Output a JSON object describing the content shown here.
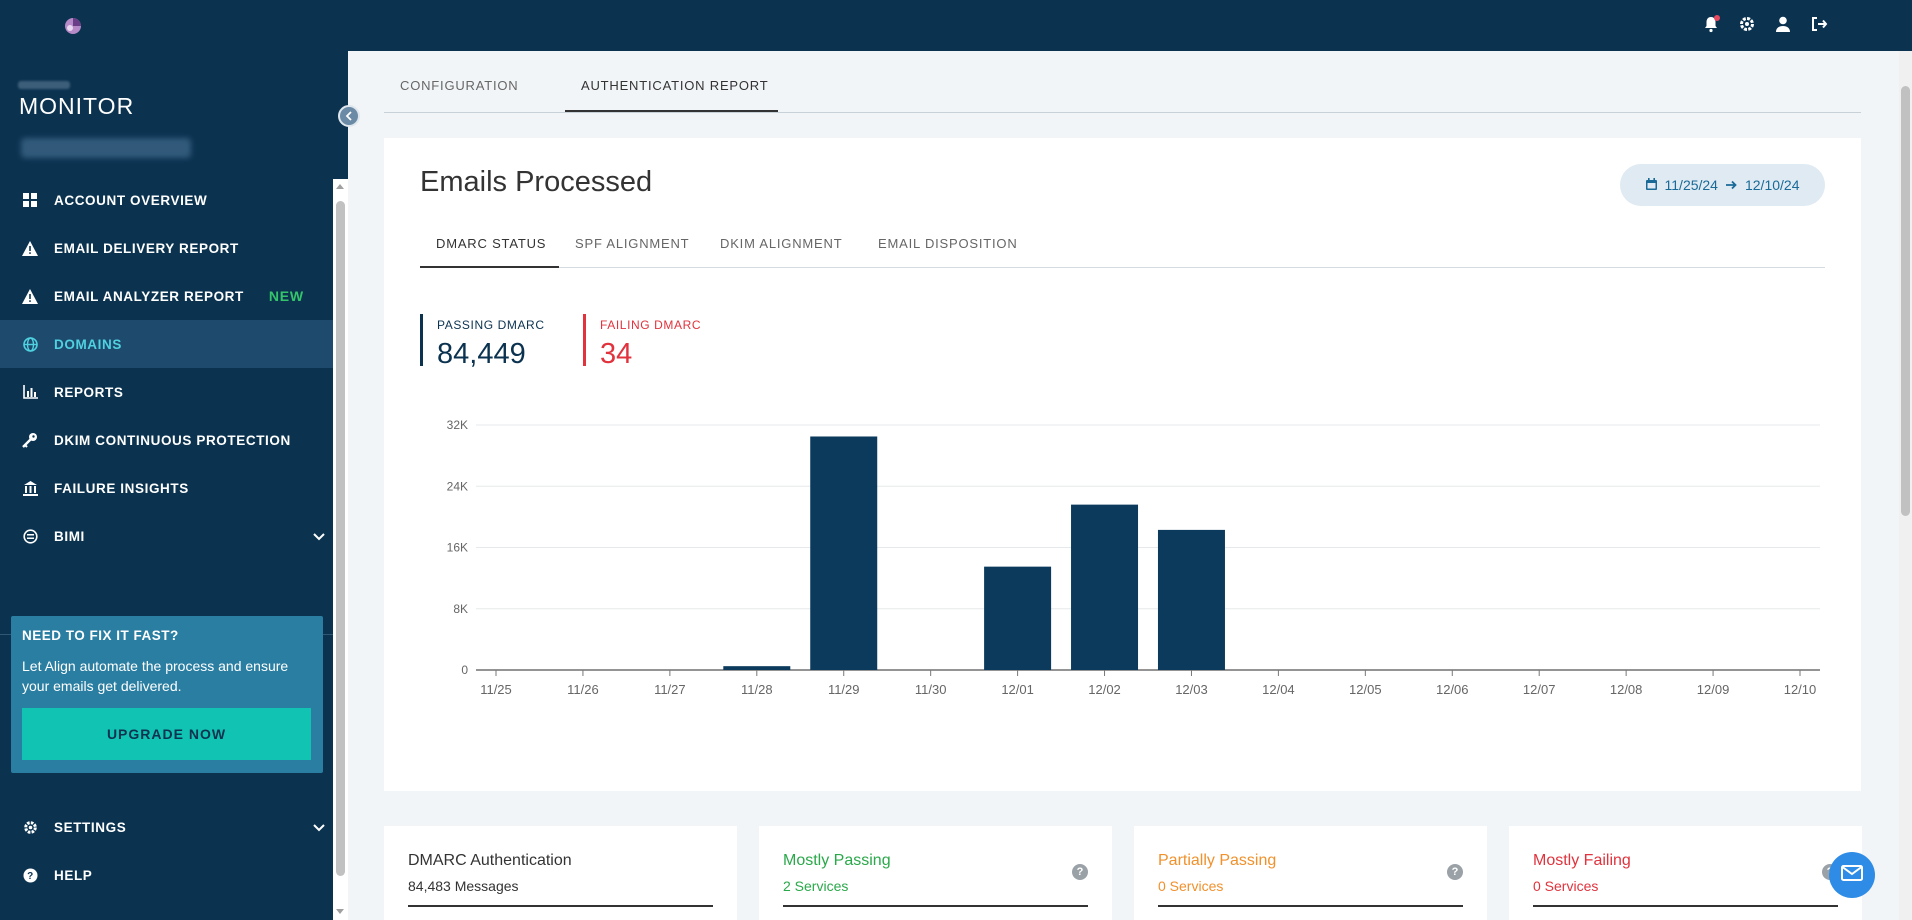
{
  "header": {
    "icons": [
      "app-logo-icon",
      "notification-bell-icon",
      "settings-gear-icon",
      "user-icon",
      "logout-icon"
    ]
  },
  "sidebar": {
    "brand": "MONITOR",
    "items": [
      {
        "label": "ACCOUNT OVERVIEW",
        "icon": "dashboard-grid-icon"
      },
      {
        "label": "EMAIL DELIVERY REPORT",
        "icon": "warning-triangle-icon"
      },
      {
        "label": "EMAIL ANALYZER REPORT",
        "icon": "warning-triangle-icon",
        "badge": "NEW"
      },
      {
        "label": "DOMAINS",
        "icon": "globe-icon",
        "active": true
      },
      {
        "label": "REPORTS",
        "icon": "bar-chart-icon"
      },
      {
        "label": "DKIM CONTINUOUS PROTECTION",
        "icon": "key-icon"
      },
      {
        "label": "FAILURE INSIGHTS",
        "icon": "building-icon"
      },
      {
        "label": "BIMI",
        "icon": "bimi-icon"
      }
    ],
    "promo": {
      "title": "NEED TO FIX IT FAST?",
      "text": "Let Align automate the process and ensure your emails get delivered.",
      "button": "UPGRADE NOW"
    },
    "bottom_items": [
      {
        "label": "SETTINGS",
        "icon": "gear-icon"
      },
      {
        "label": "HELP",
        "icon": "help-circle-icon"
      }
    ]
  },
  "tabs": {
    "configuration": "CONFIGURATION",
    "authentication_report": "AUTHENTICATION REPORT"
  },
  "report": {
    "title": "Emails Processed",
    "date_from": "11/25/24",
    "date_to": "12/10/24",
    "sub_tabs": [
      "DMARC STATUS",
      "SPF ALIGNMENT",
      "DKIM ALIGNMENT",
      "EMAIL DISPOSITION"
    ],
    "passing_label": "PASSING DMARC",
    "passing_value": "84,449",
    "failing_label": "FAILING DMARC",
    "failing_value": "34"
  },
  "chart_data": {
    "type": "bar",
    "categories": [
      "11/25",
      "11/26",
      "11/27",
      "11/28",
      "11/29",
      "11/30",
      "12/01",
      "12/02",
      "12/03",
      "12/04",
      "12/05",
      "12/06",
      "12/07",
      "12/08",
      "12/09",
      "12/10"
    ],
    "values": [
      0,
      0,
      0,
      500,
      30500,
      0,
      13500,
      21600,
      18300,
      0,
      0,
      0,
      0,
      0,
      0,
      0
    ],
    "ylim": [
      0,
      32000
    ],
    "yticks": [
      "0",
      "8K",
      "16K",
      "24K",
      "32K"
    ],
    "grid": true,
    "color": "#0b3a5c"
  },
  "summary": [
    {
      "title": "DMARC Authentication",
      "subtitle": "84,483 Messages",
      "color": "#333333"
    },
    {
      "title": "Mostly Passing",
      "subtitle": "2 Services",
      "color": "#2aa84a"
    },
    {
      "title": "Partially Passing",
      "subtitle": "0 Services",
      "color": "#f0912c"
    },
    {
      "title": "Mostly Failing",
      "subtitle": "0 Services",
      "color": "#e0333d"
    }
  ],
  "colors": {
    "navy": "#0b3350",
    "accent": "#4fd1e0",
    "upgrade": "#11c3b3"
  }
}
